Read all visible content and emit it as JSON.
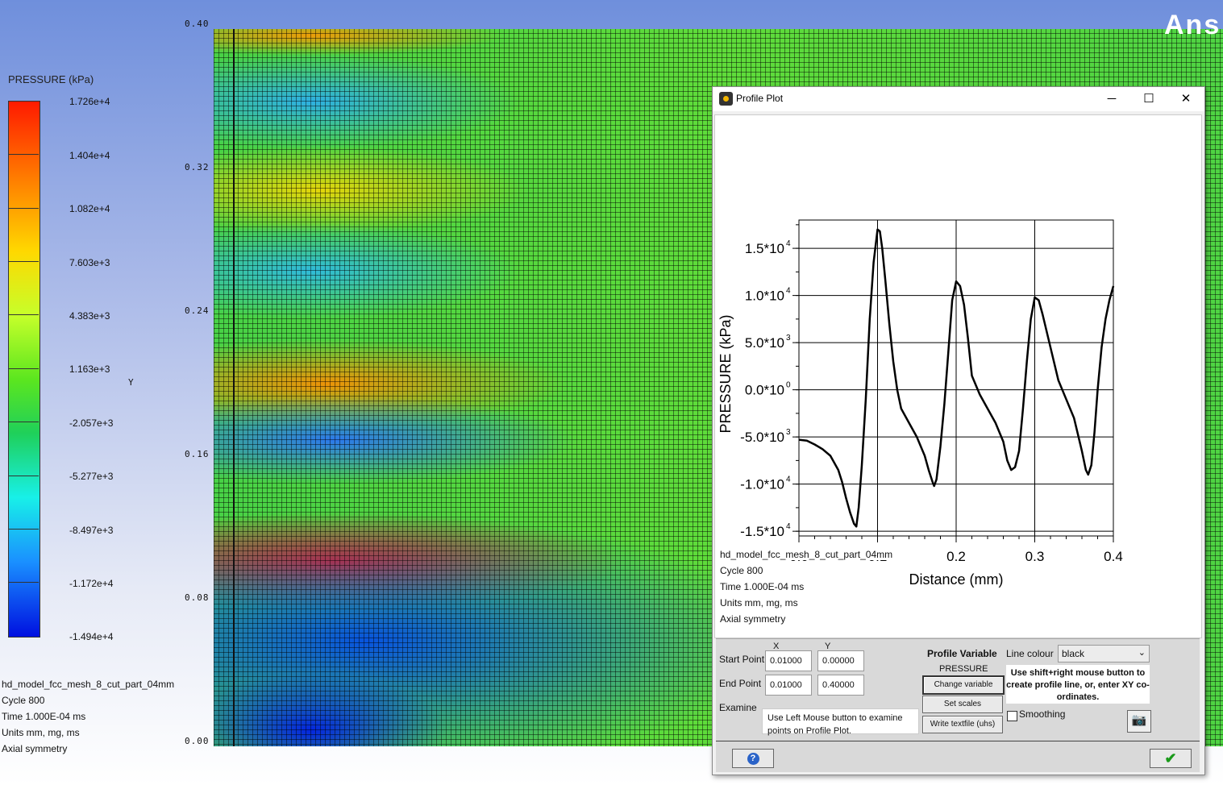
{
  "legend": {
    "title": "PRESSURE (kPa)",
    "labels": [
      "1.726e+4",
      "1.404e+4",
      "1.082e+4",
      "7.603e+3",
      "4.383e+3",
      "1.163e+3",
      "-2.057e+3",
      "-5.277e+3",
      "-8.497e+3",
      "-1.172e+4",
      "-1.494e+4"
    ],
    "colors": {
      "max": "#ff1a00",
      "min": "#0010e0"
    }
  },
  "axis": {
    "y_letter": "Y",
    "ticks": [
      "0.40",
      "0.32",
      "0.24",
      "0.16",
      "0.08",
      "0.00"
    ]
  },
  "info": {
    "dataset": "hd_model_fcc_mesh_8_cut_part_04mm",
    "cycle": "Cycle 800",
    "time": "Time 1.000E-04 ms",
    "units": "Units mm, mg, ms",
    "symmetry": "Axial symmetry"
  },
  "watermark": "Ans",
  "dialog": {
    "title": "Profile Plot",
    "window_buttons": {
      "minimize": "─",
      "maximize": "☐",
      "close": "✕"
    },
    "dataset_lines": [
      "hd_model_fcc_mesh_8_cut_part_04mm",
      "Cycle 800",
      "Time 1.000E-04 ms",
      "Units mm, mg, ms",
      "Axial symmetry"
    ],
    "controls": {
      "x_header": "X",
      "y_header": "Y",
      "start_label": "Start Point",
      "end_label": "End Point",
      "examine_label": "Examine",
      "start_x": "0.01000",
      "start_y": "0.00000",
      "end_x": "0.01000",
      "end_y": "0.40000",
      "examine_hint": "Use Left Mouse button to examine points on Profile Plot.",
      "profile_variable_label": "Profile Variable",
      "profile_variable_value": "PRESSURE",
      "change_variable": "Change variable",
      "set_scales": "Set scales",
      "write_textfile": "Write textfile (uhs)",
      "line_colour_label": "Line colour",
      "line_colour_value": "black",
      "hint": "Use shift+right mouse button to create profile line, or, enter XY co-ordinates.",
      "smoothing_label": "Smoothing",
      "smoothing_checked": false
    },
    "footer": {
      "help": "?",
      "ok": "✔"
    }
  },
  "chart_data": {
    "type": "line",
    "title": "",
    "xlabel": "Distance (mm)",
    "ylabel": "PRESSURE  (kPa)",
    "xlim": [
      0.0,
      0.4
    ],
    "ylim": [
      -15500,
      18000
    ],
    "x_ticks": [
      0.0,
      0.1,
      0.2,
      0.3,
      0.4
    ],
    "x_tick_labels": [
      "0.0",
      "0.1",
      "0.2",
      "0.3",
      "0.4"
    ],
    "y_ticks": [
      15000,
      10000,
      5000,
      0,
      -5000,
      -10000,
      -15000
    ],
    "y_tick_labels": [
      [
        "1.5*10",
        "4"
      ],
      [
        "1.0*10",
        "4"
      ],
      [
        "5.0*10",
        "3"
      ],
      [
        "0.0*10",
        "0"
      ],
      [
        "-5.0*10",
        "3"
      ],
      [
        "-1.0*10",
        "4"
      ],
      [
        "-1.5*10",
        "4"
      ]
    ],
    "grid": true,
    "line_color": "#000000",
    "series": [
      {
        "x": [
          0.0,
          0.01,
          0.02,
          0.03,
          0.04,
          0.05,
          0.055,
          0.06,
          0.065,
          0.07,
          0.073,
          0.076,
          0.08,
          0.085,
          0.09,
          0.095,
          0.1,
          0.103,
          0.106,
          0.11,
          0.115,
          0.12,
          0.125,
          0.13,
          0.14,
          0.15,
          0.16,
          0.165,
          0.17,
          0.172,
          0.175,
          0.18,
          0.185,
          0.19,
          0.195,
          0.2,
          0.205,
          0.21,
          0.215,
          0.22,
          0.23,
          0.24,
          0.25,
          0.26,
          0.265,
          0.27,
          0.275,
          0.28,
          0.285,
          0.29,
          0.295,
          0.3,
          0.305,
          0.31,
          0.32,
          0.33,
          0.34,
          0.35,
          0.36,
          0.365,
          0.368,
          0.372,
          0.376,
          0.38,
          0.385,
          0.39,
          0.395,
          0.4
        ],
        "y": [
          -5300,
          -5400,
          -5800,
          -6300,
          -7000,
          -8500,
          -9800,
          -11500,
          -13000,
          -14200,
          -14500,
          -12500,
          -8000,
          -1000,
          7500,
          13500,
          17000,
          16800,
          15000,
          11500,
          7000,
          3000,
          0,
          -2000,
          -3500,
          -5000,
          -7000,
          -8500,
          -9800,
          -10200,
          -9500,
          -6000,
          -1500,
          4000,
          9500,
          11500,
          11000,
          9000,
          5500,
          1500,
          -500,
          -2000,
          -3500,
          -5500,
          -7500,
          -8500,
          -8200,
          -6500,
          -2000,
          3000,
          7500,
          9800,
          9500,
          8000,
          4500,
          1000,
          -1000,
          -3000,
          -6500,
          -8500,
          -9000,
          -8000,
          -4500,
          0,
          4500,
          7500,
          9500,
          11000
        ]
      }
    ]
  }
}
